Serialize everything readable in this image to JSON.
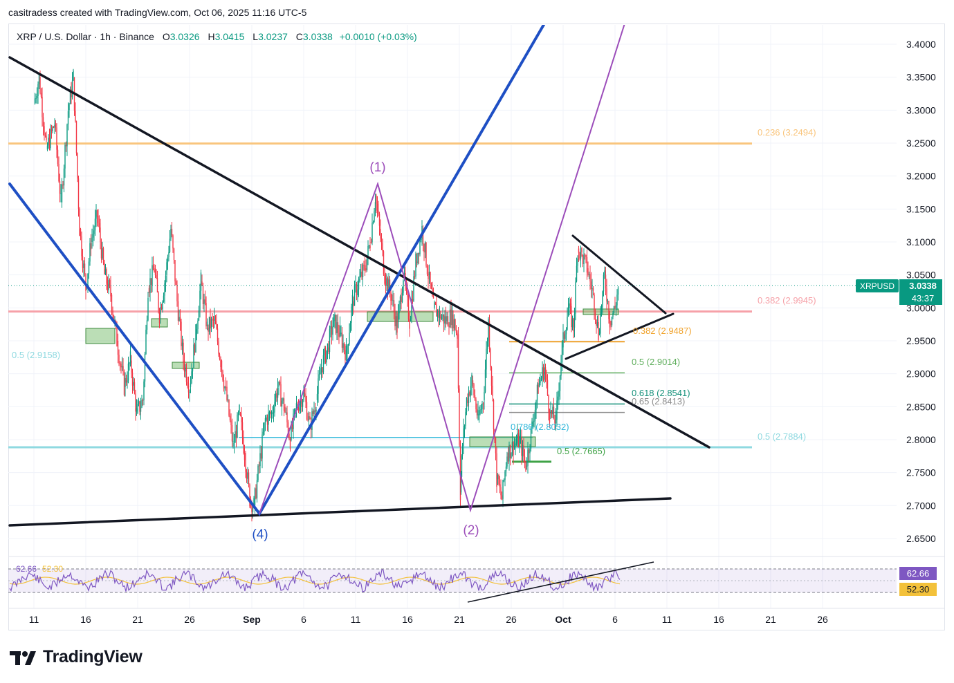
{
  "byline": "casitradess created with TradingView.com, Oct 06, 2025 11:16 UTC-5",
  "header": {
    "symbol_line": "XRP / U.S. Dollar · 1h · Binance",
    "o_label": "O",
    "o_value": "3.0326",
    "h_label": "H",
    "h_value": "3.0415",
    "l_label": "L",
    "l_value": "3.0237",
    "c_label": "C",
    "c_value": "3.0338",
    "change": "+0.0010 (+0.03%)"
  },
  "brand": "TradingView",
  "icons": {
    "logo": "tradingview-logo-icon"
  },
  "chart_data": {
    "type": "candlestick-line",
    "symbol": "XRPUSD",
    "price_axis": {
      "ticks": [
        "3.4000",
        "3.3500",
        "3.3000",
        "3.2500",
        "3.2000",
        "3.1500",
        "3.1000",
        "3.0500",
        "3.0000",
        "2.9500",
        "2.9000",
        "2.8500",
        "2.8000",
        "2.7500",
        "2.7000",
        "2.6500"
      ],
      "range": [
        2.625,
        3.43
      ]
    },
    "time_axis": {
      "ticks": [
        {
          "label": "11",
          "day": 11
        },
        {
          "label": "16",
          "day": 16
        },
        {
          "label": "21",
          "day": 21
        },
        {
          "label": "26",
          "day": 26
        },
        {
          "label": "Sep",
          "day": 32
        },
        {
          "label": "6",
          "day": 37
        },
        {
          "label": "11",
          "day": 42
        },
        {
          "label": "16",
          "day": 47
        },
        {
          "label": "21",
          "day": 52
        },
        {
          "label": "26",
          "day": 57
        },
        {
          "label": "Oct",
          "day": 62
        },
        {
          "label": "6",
          "day": 67
        },
        {
          "label": "11",
          "day": 72
        },
        {
          "label": "16",
          "day": 77
        },
        {
          "label": "21",
          "day": 82
        },
        {
          "label": "26",
          "day": 87
        }
      ],
      "unit": "days since Aug 1, 2025"
    },
    "price_path": [
      [
        11,
        3.31
      ],
      [
        11.5,
        3.35
      ],
      [
        12.2,
        3.24
      ],
      [
        13,
        3.28
      ],
      [
        13.6,
        3.16
      ],
      [
        14.3,
        3.3
      ],
      [
        14.8,
        3.35
      ],
      [
        15.4,
        3.12
      ],
      [
        16,
        3.03
      ],
      [
        16.5,
        3.1
      ],
      [
        17.1,
        3.14
      ],
      [
        17.8,
        3.05
      ],
      [
        18.4,
        3.02
      ],
      [
        19,
        2.95
      ],
      [
        19.7,
        2.88
      ],
      [
        20.3,
        2.92
      ],
      [
        20.9,
        2.84
      ],
      [
        21.5,
        2.86
      ],
      [
        22,
        3.03
      ],
      [
        22.6,
        3.06
      ],
      [
        23.1,
        2.99
      ],
      [
        23.7,
        3.05
      ],
      [
        24.2,
        3.12
      ],
      [
        24.8,
        3.01
      ],
      [
        25.4,
        2.92
      ],
      [
        26,
        2.88
      ],
      [
        26.6,
        2.96
      ],
      [
        27.1,
        3.04
      ],
      [
        27.7,
        2.97
      ],
      [
        28.4,
        2.98
      ],
      [
        29,
        2.92
      ],
      [
        29.6,
        2.86
      ],
      [
        30.2,
        2.79
      ],
      [
        30.8,
        2.84
      ],
      [
        31.3,
        2.78
      ],
      [
        31.8,
        2.71
      ],
      [
        32.2,
        2.7
      ],
      [
        32.7,
        2.76
      ],
      [
        33.3,
        2.83
      ],
      [
        33.9,
        2.84
      ],
      [
        34.5,
        2.88
      ],
      [
        35.1,
        2.85
      ],
      [
        35.7,
        2.8
      ],
      [
        36.3,
        2.85
      ],
      [
        37,
        2.87
      ],
      [
        37.6,
        2.82
      ],
      [
        38.2,
        2.86
      ],
      [
        38.7,
        2.91
      ],
      [
        39.3,
        2.94
      ],
      [
        39.9,
        2.98
      ],
      [
        40.5,
        2.96
      ],
      [
        41.1,
        2.93
      ],
      [
        41.7,
        3.01
      ],
      [
        42.3,
        3.04
      ],
      [
        42.9,
        3.06
      ],
      [
        43.4,
        3.1
      ],
      [
        43.9,
        3.17
      ],
      [
        44.3,
        3.12
      ],
      [
        44.8,
        3.05
      ],
      [
        45.4,
        3.02
      ],
      [
        46,
        2.97
      ],
      [
        46.6,
        3.05
      ],
      [
        47.2,
        2.98
      ],
      [
        47.8,
        3.07
      ],
      [
        48.4,
        3.12
      ],
      [
        49,
        3.05
      ],
      [
        49.5,
        3.0
      ],
      [
        50.1,
        2.99
      ],
      [
        50.7,
        2.98
      ],
      [
        51.3,
        2.99
      ],
      [
        51.8,
        2.96
      ],
      [
        52.1,
        2.72
      ],
      [
        52.3,
        2.79
      ],
      [
        52.7,
        2.86
      ],
      [
        53.2,
        2.89
      ],
      [
        53.8,
        2.83
      ],
      [
        54.3,
        2.86
      ],
      [
        54.8,
        2.98
      ],
      [
        55.2,
        2.86
      ],
      [
        55.6,
        2.74
      ],
      [
        56.1,
        2.71
      ],
      [
        56.6,
        2.78
      ],
      [
        57.2,
        2.79
      ],
      [
        57.8,
        2.8
      ],
      [
        58.4,
        2.76
      ],
      [
        59,
        2.82
      ],
      [
        59.6,
        2.88
      ],
      [
        60.2,
        2.91
      ],
      [
        60.7,
        2.84
      ],
      [
        61.3,
        2.83
      ],
      [
        61.9,
        2.94
      ],
      [
        62.5,
        3.0
      ],
      [
        63,
        2.97
      ],
      [
        63.4,
        3.09
      ],
      [
        63.8,
        3.08
      ],
      [
        64.3,
        3.06
      ],
      [
        64.9,
        3.02
      ],
      [
        65.4,
        2.96
      ],
      [
        66,
        3.05
      ],
      [
        66.5,
        2.98
      ],
      [
        67,
        3.0
      ],
      [
        67.3,
        3.03
      ]
    ],
    "horizontal_levels": [
      {
        "label": "0.236 (3.2494)",
        "value": 3.2494,
        "color": "#f9c57d",
        "scope": "full"
      },
      {
        "label": "0.382 (2.9945)",
        "value": 2.9945,
        "color": "#f6a1a8",
        "scope": "full"
      },
      {
        "label": "0.5 (2.7884)",
        "value": 2.7884,
        "color": "#8fd9e0",
        "scope": "full"
      },
      {
        "label": "0.5 (2.9158)",
        "value": 2.9158,
        "color": "#8fd9e0",
        "scope": "left-label"
      },
      {
        "label": "0.382 (2.9487)",
        "value": 2.9487,
        "color": "#f0a22b",
        "scope": "short"
      },
      {
        "label": "0.5 (2.9014)",
        "value": 2.9014,
        "color": "#5fae5c",
        "scope": "short"
      },
      {
        "label": "0.618 (2.8541)",
        "value": 2.8541,
        "color": "#14907a",
        "scope": "short"
      },
      {
        "label": "0.65 (2.8413)",
        "value": 2.8413,
        "color": "#8c8c8c",
        "scope": "short"
      },
      {
        "label": "0.786 (2.8032)",
        "value": 2.8032,
        "color": "#2fb7da",
        "scope": "short"
      },
      {
        "label": "0.5 (2.7665)",
        "value": 2.7665,
        "color": "#3fa246",
        "scope": "short"
      }
    ],
    "wave_labels": [
      {
        "label": "(1)",
        "color": "#9c4dba"
      },
      {
        "label": "(4)",
        "color": "#1e4fc4"
      },
      {
        "label": "(2)",
        "color": "#9c4dba"
      }
    ],
    "last_price": {
      "symbol": "XRPUSD",
      "price": "3.0338",
      "countdown": "43:37",
      "color": "#089981"
    },
    "rsi": {
      "value": "62.66",
      "ma": "52.30",
      "value_color": "#7e57c2",
      "ma_color": "#f3c13a"
    }
  }
}
